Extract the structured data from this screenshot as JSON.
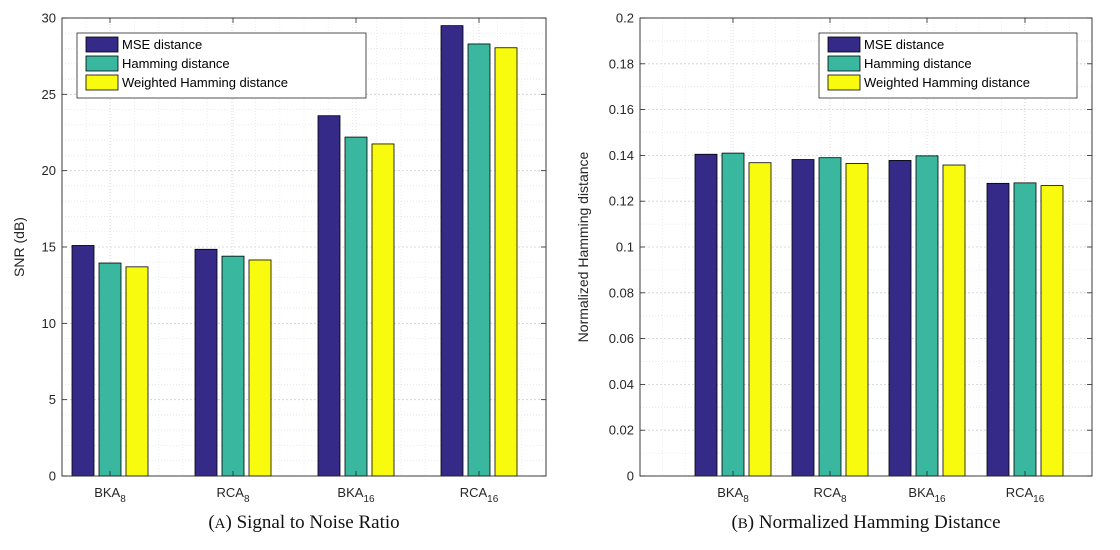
{
  "chart_data": [
    {
      "type": "bar",
      "caption": {
        "tag": "(a)",
        "text": "Signal to Noise Ratio"
      },
      "categories": [
        {
          "base": "BKA",
          "sub": "8"
        },
        {
          "base": "RCA",
          "sub": "8"
        },
        {
          "base": "BKA",
          "sub": "16"
        },
        {
          "base": "RCA",
          "sub": "16"
        }
      ],
      "series": [
        {
          "name": "MSE distance",
          "color": "#352a87",
          "values": [
            15.1,
            14.85,
            23.6,
            29.5
          ]
        },
        {
          "name": "Hamming distance",
          "color": "#39b79f",
          "values": [
            13.95,
            14.4,
            22.2,
            28.3
          ]
        },
        {
          "name": "Weighted Hamming distance",
          "color": "#f9fb0e",
          "values": [
            13.7,
            14.15,
            21.75,
            28.05
          ]
        }
      ],
      "ylabel": "SNR (dB)",
      "ylim": [
        0,
        30
      ],
      "yticks": [
        "0",
        "5",
        "10",
        "15",
        "20",
        "25",
        "30"
      ],
      "grid": true,
      "legend": "top-left"
    },
    {
      "type": "bar",
      "caption": {
        "tag": "(b)",
        "text": "Normalized Hamming Distance"
      },
      "categories": [
        {
          "base": "BKA",
          "sub": "8"
        },
        {
          "base": "RCA",
          "sub": "8"
        },
        {
          "base": "BKA",
          "sub": "16"
        },
        {
          "base": "RCA",
          "sub": "16"
        }
      ],
      "series": [
        {
          "name": "MSE distance",
          "color": "#352a87",
          "values": [
            0.1405,
            0.1382,
            0.1378,
            0.1278
          ]
        },
        {
          "name": "Hamming distance",
          "color": "#39b79f",
          "values": [
            0.141,
            0.139,
            0.1398,
            0.128
          ]
        },
        {
          "name": "Weighted Hamming distance",
          "color": "#f9fb0e",
          "values": [
            0.1368,
            0.1365,
            0.1358,
            0.1268
          ]
        }
      ],
      "ylabel": "Normalized Hamming distance",
      "ylim": [
        0,
        0.2
      ],
      "yticks": [
        "0",
        "0.02",
        "0.04",
        "0.06",
        "0.08",
        "0.1",
        "0.12",
        "0.14",
        "0.16",
        "0.18",
        "0.2"
      ],
      "grid": true,
      "legend": "top-right"
    }
  ]
}
